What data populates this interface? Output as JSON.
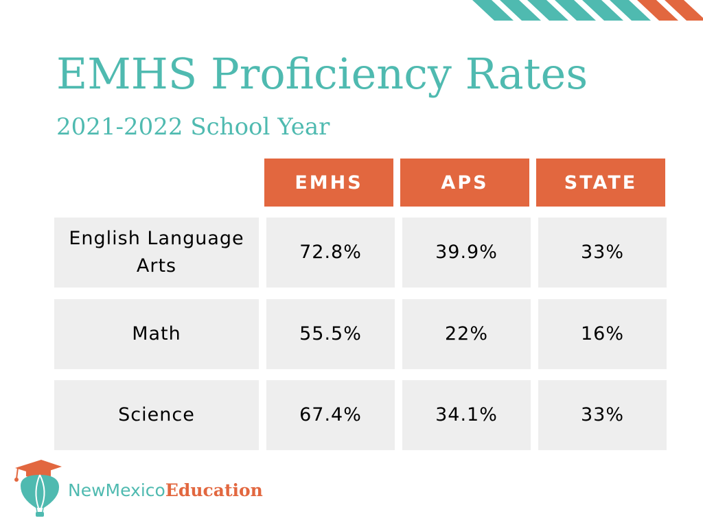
{
  "colors": {
    "teal": "#4fbab0",
    "orange": "#e2673f",
    "cell_bg": "#eeeeee"
  },
  "slide": {
    "title": "EMHS Proficiency Rates",
    "subtitle": "2021-2022 School Year"
  },
  "table": {
    "headers": [
      "EMHS",
      "APS",
      "STATE"
    ],
    "rows": [
      {
        "subject": "English Language Arts",
        "values": [
          "72.8%",
          "39.9%",
          "33%"
        ]
      },
      {
        "subject": "Math",
        "values": [
          "55.5%",
          "22%",
          "16%"
        ]
      },
      {
        "subject": "Science",
        "values": [
          "67.4%",
          "34.1%",
          "33%"
        ]
      }
    ]
  },
  "logo": {
    "icon": "graduation-cap-balloon-icon",
    "name_part1": "NewMexico",
    "name_part2": "Education"
  }
}
